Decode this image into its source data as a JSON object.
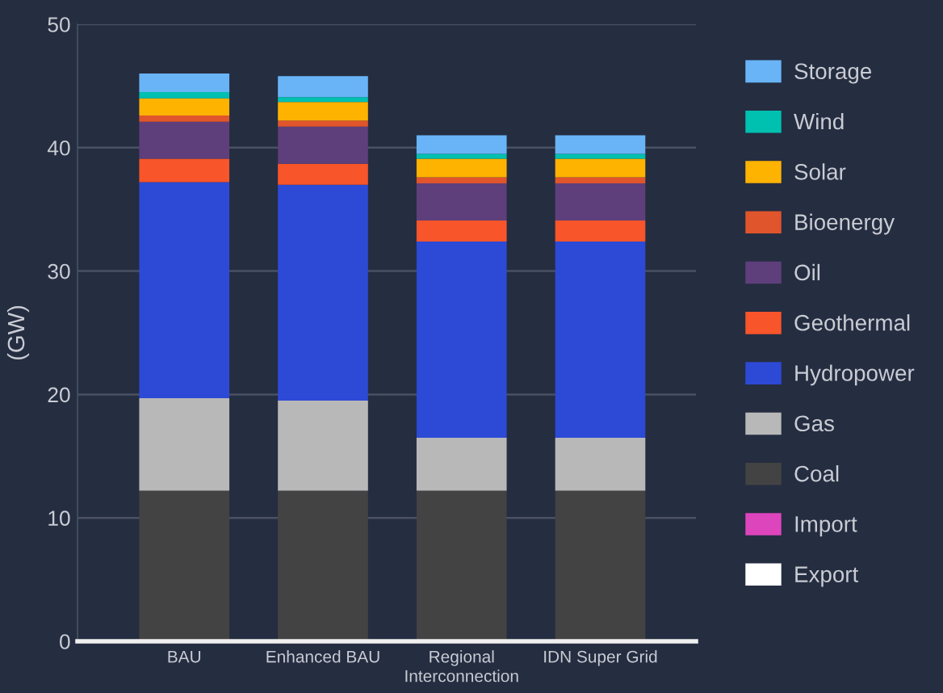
{
  "chart_data": {
    "type": "bar",
    "stacked": true,
    "ylabel": "(GW)",
    "categories": [
      "BAU",
      "Enhanced BAU",
      "Regional\nInterconnection",
      "IDN Super Grid"
    ],
    "series": [
      {
        "name": "Export",
        "color": "#ffffff",
        "values": [
          null,
          null,
          null,
          null
        ]
      },
      {
        "name": "Import",
        "color": "#dd45bd",
        "values": [
          null,
          null,
          null,
          null
        ]
      },
      {
        "name": "Coal",
        "color": "#434343",
        "values": [
          12.2,
          12.2,
          12.2,
          12.2
        ]
      },
      {
        "name": "Gas",
        "color": "#b8b8b8",
        "values": [
          7.5,
          7.3,
          4.3,
          4.3
        ]
      },
      {
        "name": "Hydropower",
        "color": "#2d4ad6",
        "values": [
          17.5,
          17.5,
          15.9,
          15.9
        ]
      },
      {
        "name": "Geothermal",
        "color": "#f8552a",
        "values": [
          1.9,
          1.7,
          1.7,
          1.7
        ]
      },
      {
        "name": "Oil",
        "color": "#5e3f7b",
        "values": [
          3.0,
          3.0,
          3.0,
          3.0
        ]
      },
      {
        "name": "Bioenergy",
        "color": "#e0552c",
        "values": [
          0.5,
          0.5,
          0.5,
          0.5
        ]
      },
      {
        "name": "Solar",
        "color": "#fdb300",
        "values": [
          1.4,
          1.5,
          1.5,
          1.5
        ]
      },
      {
        "name": "Wind",
        "color": "#00c0b0",
        "values": [
          0.5,
          0.4,
          0.4,
          0.4
        ]
      },
      {
        "name": "Storage",
        "color": "#68b4f6",
        "values": [
          1.5,
          1.7,
          1.5,
          1.5
        ]
      }
    ],
    "ylim": [
      0,
      50
    ],
    "yticks": [
      0,
      10,
      20,
      30,
      40,
      50
    ],
    "grid": "y",
    "legend": "right"
  }
}
